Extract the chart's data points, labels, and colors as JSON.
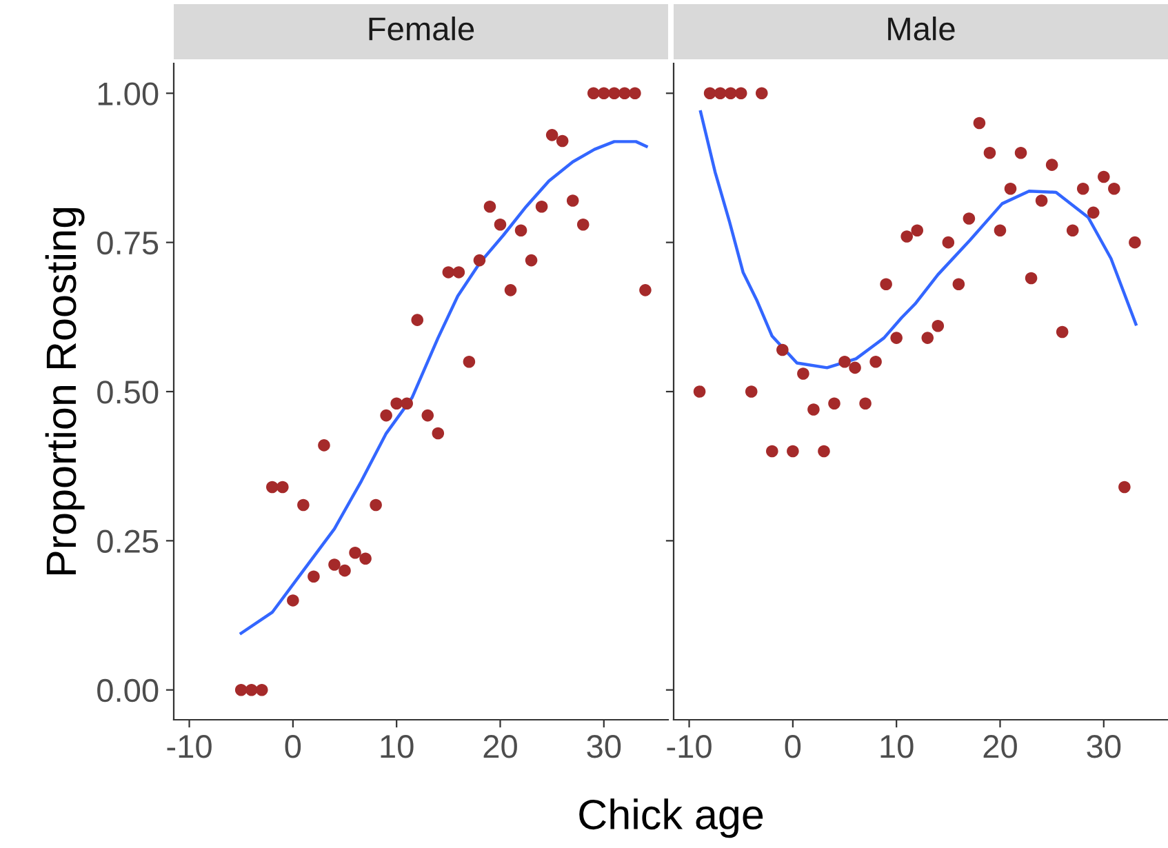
{
  "chart_data": [
    {
      "type": "scatter",
      "title": "Female",
      "xlabel": "Chick age",
      "ylabel": "Proportion Roosting",
      "xlim": [
        -11.5,
        36.2
      ],
      "ylim": [
        -0.05,
        1.05
      ],
      "xticks": [
        -10,
        0,
        10,
        20,
        30
      ],
      "yticks": [
        {
          "value": 0,
          "label": "0.00"
        },
        {
          "value": 0.25,
          "label": "0.25"
        },
        {
          "value": 0.5,
          "label": "0.50"
        },
        {
          "value": 0.75,
          "label": "0.75"
        },
        {
          "value": 1,
          "label": "1.00"
        }
      ],
      "series": [
        {
          "marker": "circle",
          "color": "#a52a2a",
          "x": [
            -5,
            -4,
            -3,
            -2,
            -1,
            0,
            1,
            2,
            3,
            4,
            5,
            6,
            7,
            8,
            9,
            10,
            11,
            12,
            13,
            14,
            15,
            16,
            17,
            18,
            19,
            20,
            21,
            22,
            23,
            24,
            25,
            26,
            27,
            28,
            29,
            30,
            31,
            32,
            33,
            34
          ],
          "values": [
            0,
            0,
            0,
            0.34,
            0.34,
            0.15,
            0.31,
            0.19,
            0.41,
            0.21,
            0.2,
            0.23,
            0.22,
            0.31,
            0.46,
            0.48,
            0.48,
            0.62,
            0.46,
            0.43,
            0.7,
            0.7,
            0.55,
            0.72,
            0.81,
            0.78,
            0.67,
            0.77,
            0.72,
            0.81,
            0.93,
            0.92,
            0.82,
            0.78,
            1,
            1,
            1,
            1,
            1,
            0.67
          ]
        },
        {
          "type": "line",
          "color": "#3366ff",
          "x": [
            -5,
            -2,
            1,
            4,
            6.6,
            9,
            11.5,
            14,
            15.9,
            18,
            20.3,
            22.5,
            24.7,
            27,
            29.1,
            31,
            33.1,
            34.1
          ],
          "values": [
            0.095,
            0.13,
            0.2,
            0.27,
            0.35,
            0.43,
            0.49,
            0.59,
            0.66,
            0.715,
            0.762,
            0.81,
            0.853,
            0.885,
            0.906,
            0.919,
            0.919,
            0.911
          ]
        }
      ]
    },
    {
      "type": "scatter",
      "title": "Male",
      "xlim": [
        -11.5,
        36.2
      ],
      "ylim": [
        -0.05,
        1.05
      ],
      "xticks": [
        -10,
        0,
        10,
        20,
        30
      ],
      "yticks": [
        {
          "value": 0,
          "label": null
        },
        {
          "value": 0.25,
          "label": null
        },
        {
          "value": 0.5,
          "label": null
        },
        {
          "value": 0.75,
          "label": null
        },
        {
          "value": 1,
          "label": null
        }
      ],
      "tick_labels": "x",
      "series": [
        {
          "marker": "circle",
          "color": "#a52a2a",
          "x": [
            -9,
            -8,
            -7,
            -6,
            -5,
            -4,
            -3,
            -2,
            -1,
            0,
            1,
            2,
            3,
            4,
            5,
            6,
            7,
            8,
            9,
            10,
            11,
            12,
            13,
            14,
            15,
            16,
            17,
            18,
            19,
            20,
            21,
            22,
            23,
            24,
            25,
            26,
            27,
            28,
            29,
            30,
            31,
            32,
            33
          ],
          "values": [
            0.5,
            1,
            1,
            1,
            1,
            0.5,
            1,
            0.4,
            0.57,
            0.4,
            0.53,
            0.47,
            0.4,
            0.48,
            0.55,
            0.54,
            0.48,
            0.55,
            0.68,
            0.59,
            0.76,
            0.77,
            0.59,
            0.61,
            0.75,
            0.68,
            0.79,
            0.95,
            0.9,
            0.77,
            0.84,
            0.9,
            0.69,
            0.82,
            0.88,
            0.6,
            0.77,
            0.84,
            0.8,
            0.86,
            0.84,
            0.34,
            0.75
          ]
        },
        {
          "type": "line",
          "color": "#3366ff",
          "x": [
            -8.9,
            -7.5,
            -6.1,
            -4.8,
            -3.5,
            -2,
            0.4,
            3.3,
            6.1,
            8.8,
            10.5,
            11.8,
            14,
            17.1,
            20.2,
            22.8,
            25.4,
            28.5,
            30.7,
            33.1
          ],
          "values": [
            0.969,
            0.868,
            0.784,
            0.7,
            0.654,
            0.593,
            0.548,
            0.54,
            0.555,
            0.59,
            0.624,
            0.647,
            0.696,
            0.754,
            0.815,
            0.836,
            0.834,
            0.792,
            0.723,
            0.613
          ]
        }
      ]
    }
  ]
}
